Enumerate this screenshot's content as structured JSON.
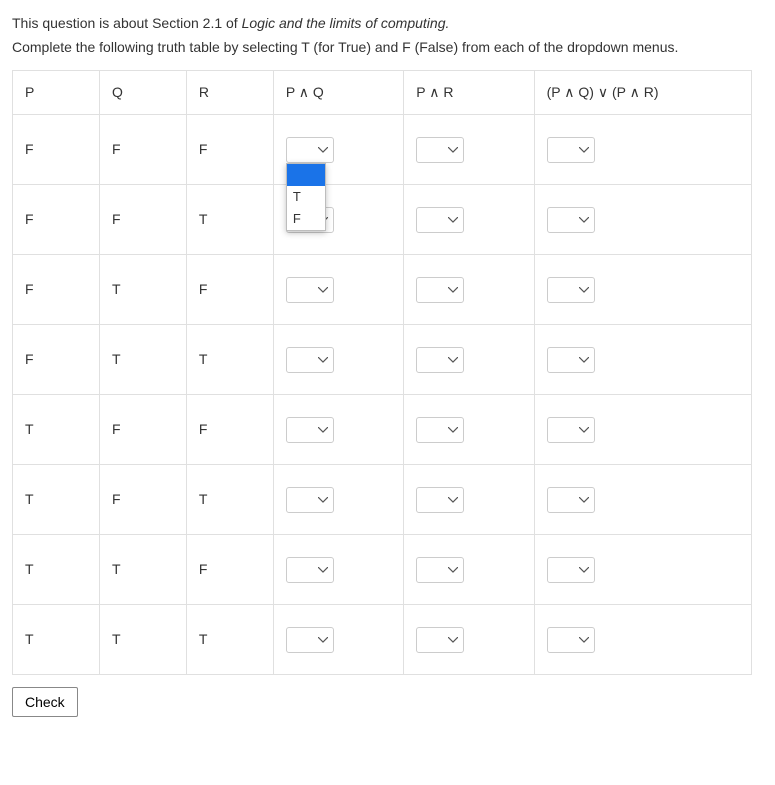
{
  "intro": {
    "line1_prefix": "This question is about Section 2.1 of ",
    "line1_italic": "Logic and the limits of computing.",
    "line2": "Complete the following truth table by selecting T (for True) and F (False) from each of the dropdown menus."
  },
  "headers": {
    "p": "P",
    "q": "Q",
    "r": "R",
    "pq": "P ∧ Q",
    "pr": "P ∧ R",
    "result": "(P ∧ Q) ∨ (P ∧ R)"
  },
  "rows": [
    {
      "p": "F",
      "q": "F",
      "r": "F"
    },
    {
      "p": "F",
      "q": "F",
      "r": "T"
    },
    {
      "p": "F",
      "q": "T",
      "r": "F"
    },
    {
      "p": "F",
      "q": "T",
      "r": "T"
    },
    {
      "p": "T",
      "q": "F",
      "r": "F"
    },
    {
      "p": "T",
      "q": "F",
      "r": "T"
    },
    {
      "p": "T",
      "q": "T",
      "r": "F"
    },
    {
      "p": "T",
      "q": "T",
      "r": "T"
    }
  ],
  "dropdown": {
    "options": [
      "T",
      "F"
    ],
    "open_cell": {
      "row": 0,
      "col": "pq"
    }
  },
  "buttons": {
    "check": "Check"
  }
}
